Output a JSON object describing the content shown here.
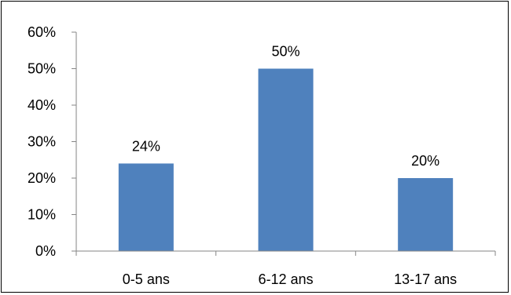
{
  "chart_data": {
    "type": "bar",
    "title": "",
    "xlabel": "",
    "ylabel": "",
    "categories": [
      "0-5 ans",
      "6-12 ans",
      "13-17 ans"
    ],
    "values": [
      24,
      50,
      20
    ],
    "data_labels": [
      "24%",
      "50%",
      "20%"
    ],
    "ylim": [
      0,
      60
    ],
    "y_ticks": [
      0,
      10,
      20,
      30,
      40,
      50,
      60
    ],
    "y_tick_labels": [
      "0%",
      "10%",
      "20%",
      "30%",
      "40%",
      "50%",
      "60%"
    ],
    "grid": false,
    "legend": "none",
    "colors": {
      "bar": "#4F81BD",
      "axis": "#868686",
      "border": "#000000"
    }
  }
}
